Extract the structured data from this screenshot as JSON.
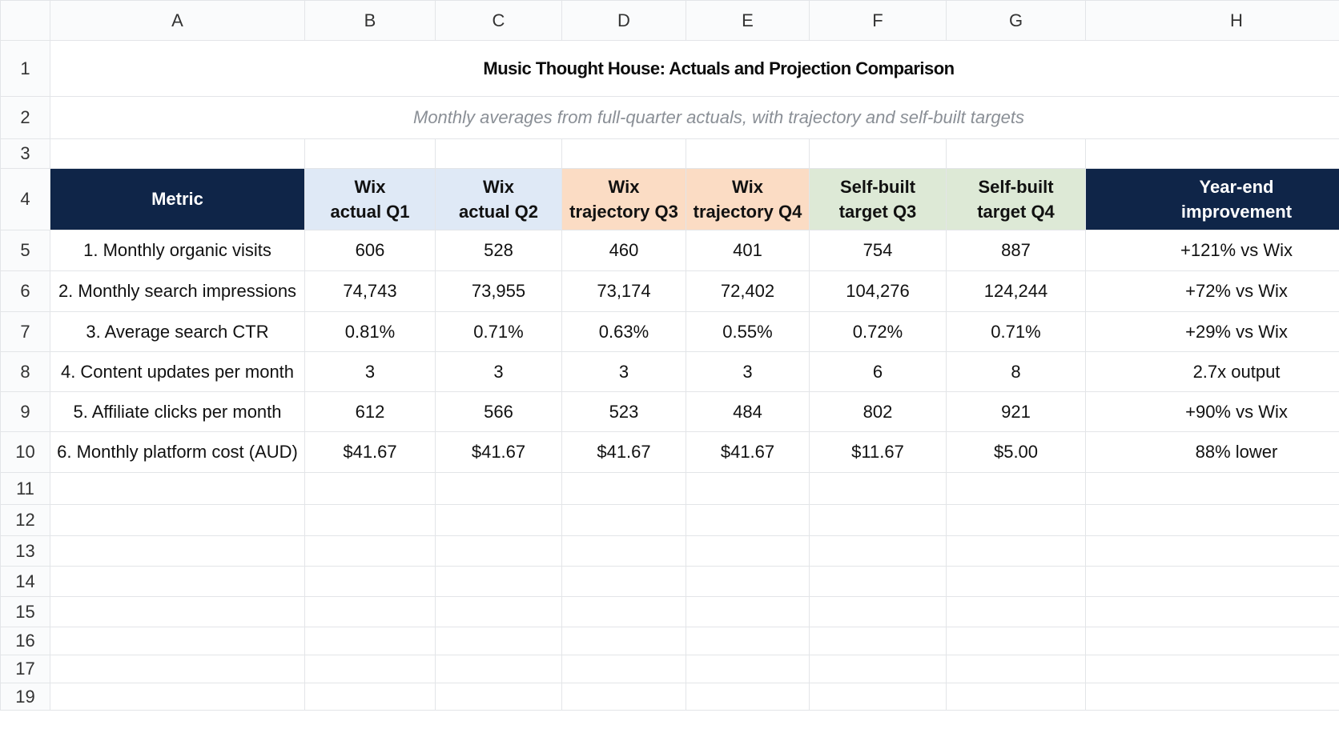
{
  "sheet": {
    "column_letters": [
      "A",
      "B",
      "C",
      "D",
      "E",
      "F",
      "G",
      "H"
    ],
    "title": "Music Thought House: Actuals and Projection Comparison",
    "subtitle": "Monthly averages from full-quarter actuals, with trajectory and self-built targets",
    "header": {
      "metric_label": "Metric",
      "columns": [
        {
          "line1": "Wix",
          "line2": "actual Q1",
          "group": "wix-actual"
        },
        {
          "line1": "Wix",
          "line2": "actual Q2",
          "group": "wix-actual"
        },
        {
          "line1": "Wix",
          "line2": "trajectory Q3",
          "group": "wix-trajectory"
        },
        {
          "line1": "Wix",
          "line2": "trajectory Q4",
          "group": "wix-trajectory"
        },
        {
          "line1": "Self-built",
          "line2": "target Q3",
          "group": "self-built"
        },
        {
          "line1": "Self-built",
          "line2": "target Q4",
          "group": "self-built"
        },
        {
          "line1": "Year-end",
          "line2": "improvement",
          "group": "improvement"
        }
      ]
    },
    "rows": [
      {
        "metric": "1. Monthly organic visits",
        "values": [
          "606",
          "528",
          "460",
          "401",
          "754",
          "887",
          "+121% vs Wix"
        ]
      },
      {
        "metric": "2. Monthly search impressions",
        "values": [
          "74,743",
          "73,955",
          "73,174",
          "72,402",
          "104,276",
          "124,244",
          "+72% vs Wix"
        ]
      },
      {
        "metric": "3. Average search CTR",
        "values": [
          "0.81%",
          "0.71%",
          "0.63%",
          "0.55%",
          "0.72%",
          "0.71%",
          "+29% vs Wix"
        ]
      },
      {
        "metric": "4. Content updates per month",
        "values": [
          "3",
          "3",
          "3",
          "3",
          "6",
          "8",
          "2.7x output"
        ]
      },
      {
        "metric": "5. Affiliate clicks per month",
        "values": [
          "612",
          "566",
          "523",
          "484",
          "802",
          "921",
          "+90% vs Wix"
        ]
      },
      {
        "metric": "6. Monthly platform cost (AUD)",
        "values": [
          "$41.67",
          "$41.67",
          "$41.67",
          "$41.67",
          "$11.67",
          "$5.00",
          "88% lower"
        ]
      }
    ],
    "row_numbers": [
      "1",
      "2",
      "3",
      "4",
      "5",
      "6",
      "7",
      "8",
      "9",
      "10",
      "11",
      "12",
      "13",
      "14",
      "15",
      "16",
      "17",
      "19"
    ],
    "colors": {
      "navy": "#0f2548",
      "blue_header": "#dfe9f6",
      "orange_header": "#fbdcc4",
      "green_header": "#dde9d6"
    }
  }
}
